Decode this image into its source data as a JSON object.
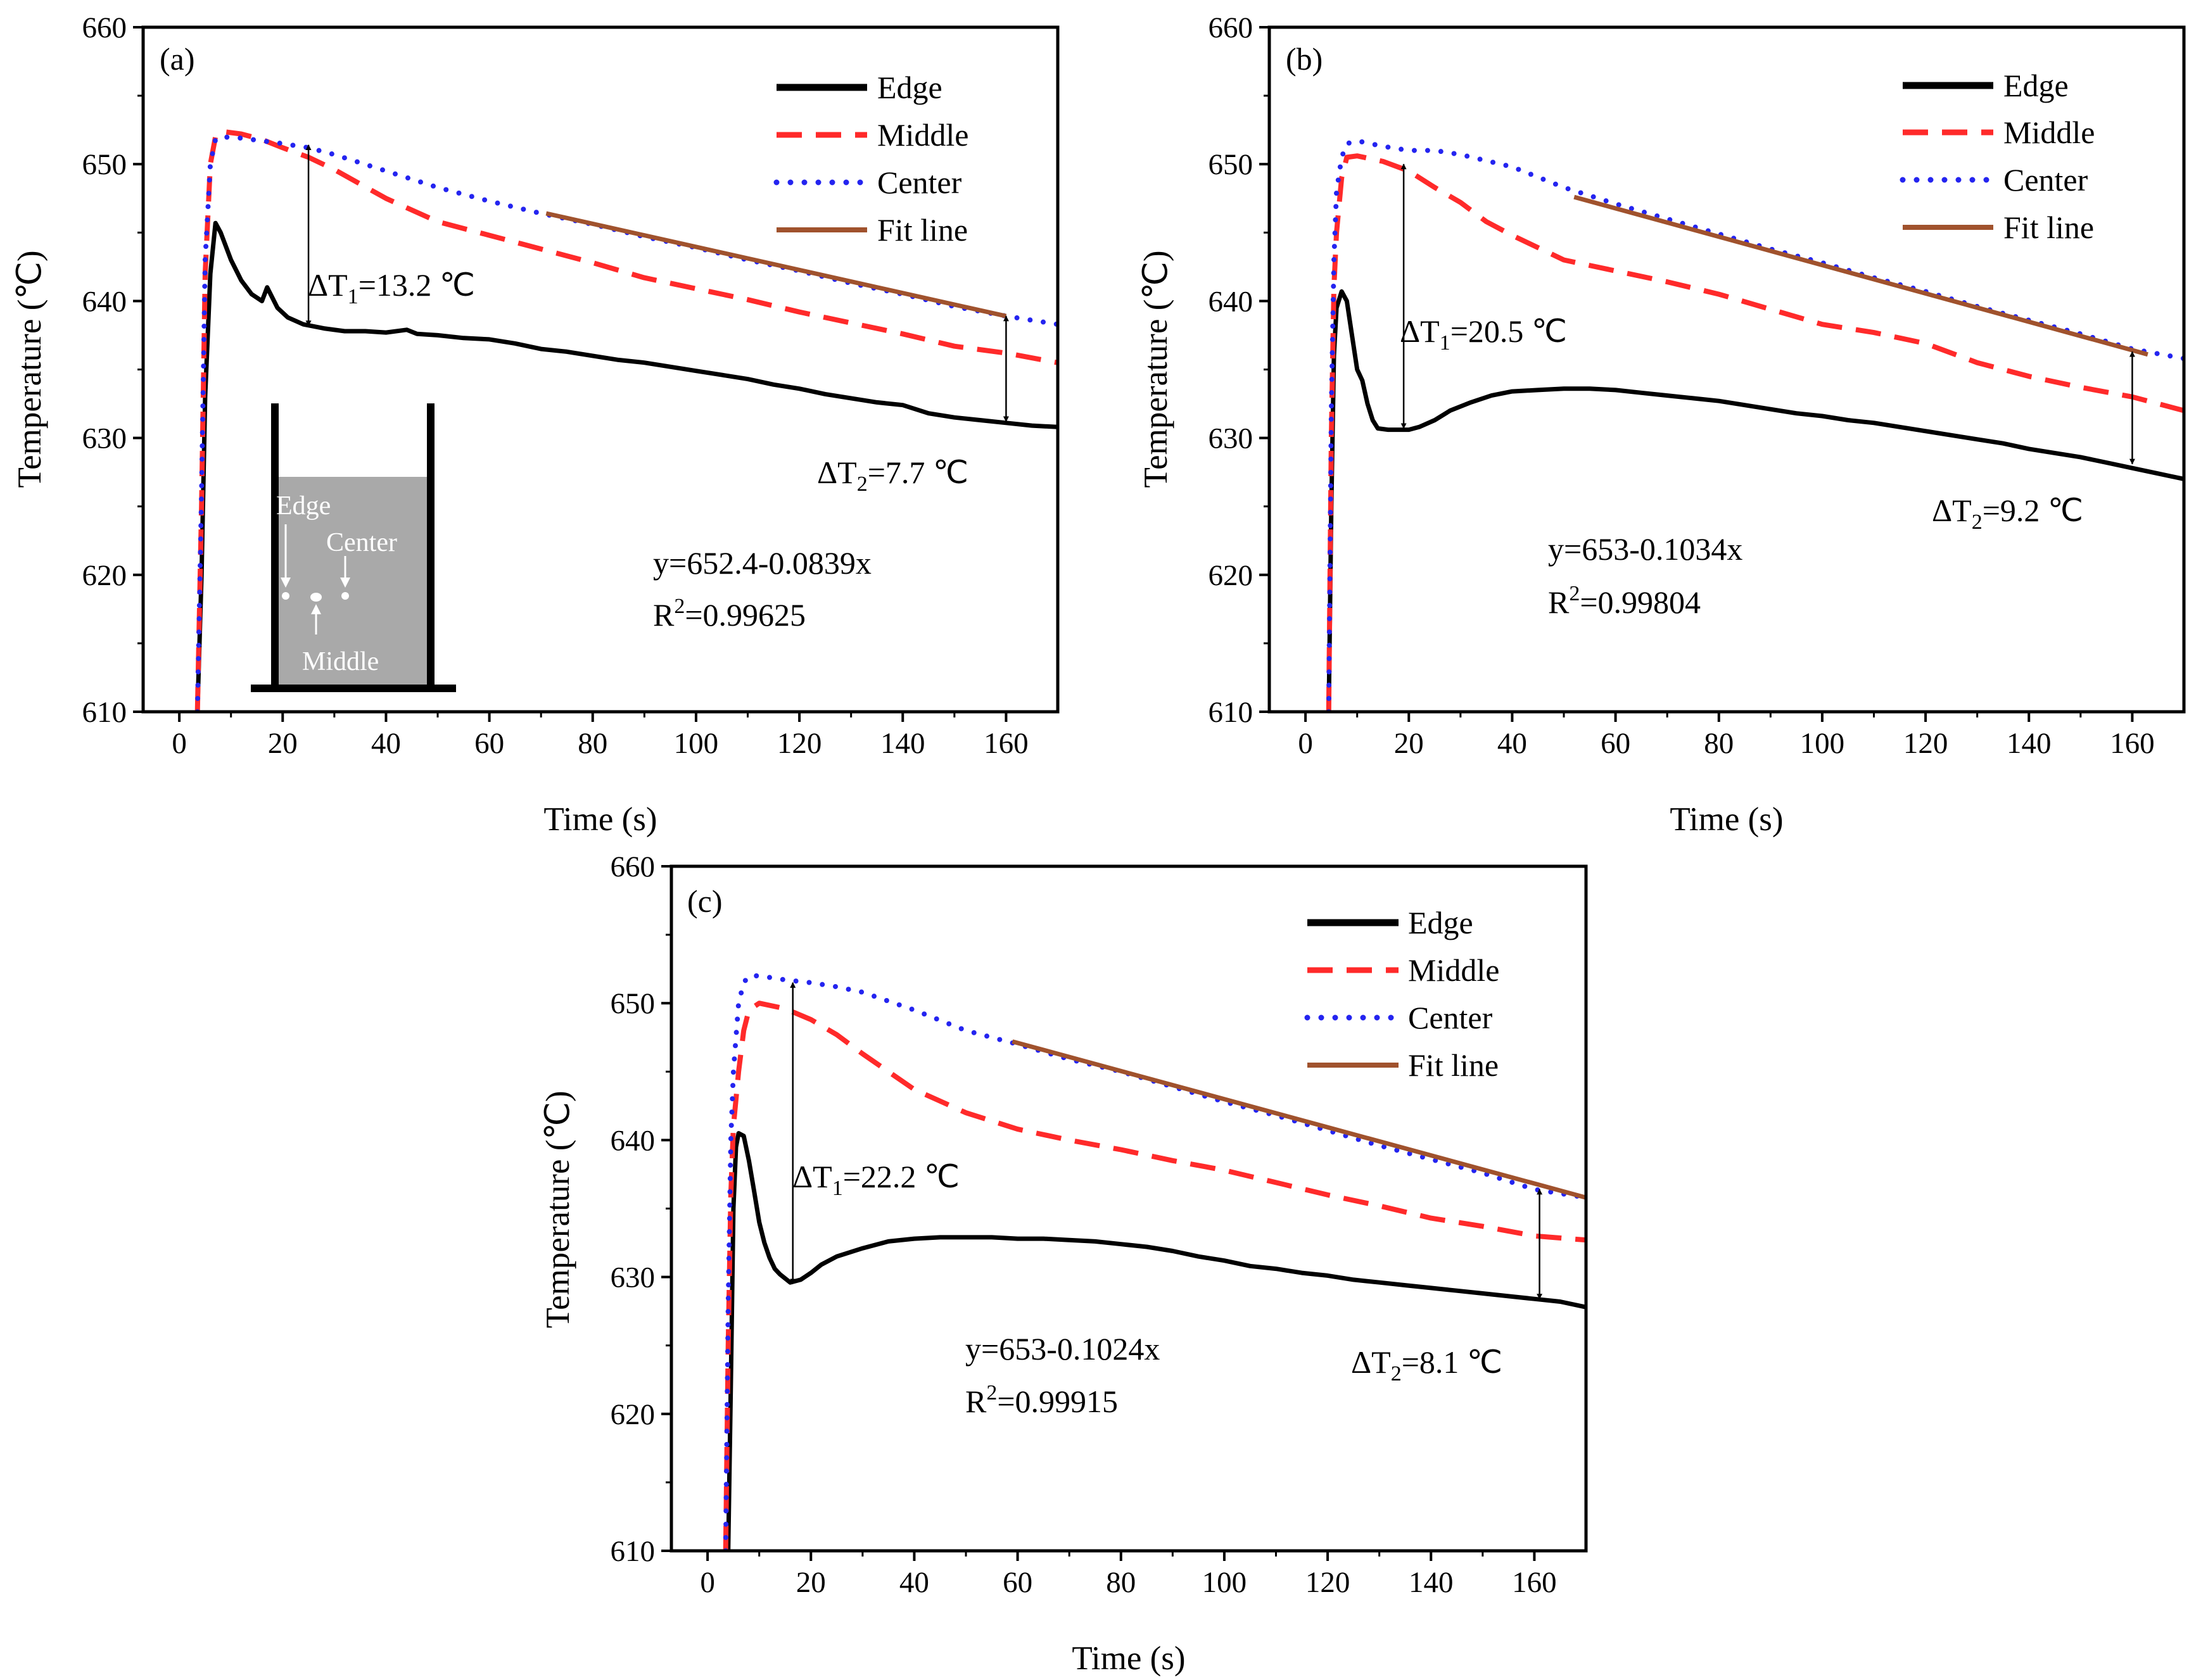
{
  "colors": {
    "edge": "#000000",
    "middle": "#ff2a2a",
    "center": "#2424f0",
    "fit": "#a0522d",
    "inset_fill": "#a9a9a9",
    "inset_dot": "#ffffff"
  },
  "chart_data": [
    {
      "type": "line",
      "panel_label": "(a)",
      "xlabel": "Time (s)",
      "ylabel": "Temperature (℃)",
      "xlim": [
        -7,
        170
      ],
      "ylim": [
        610,
        660
      ],
      "x_ticks": [
        "0",
        "20",
        "40",
        "60",
        "80",
        "100",
        "120",
        "140",
        "160"
      ],
      "y_ticks": [
        "610",
        "620",
        "630",
        "640",
        "650",
        "660"
      ],
      "legend": [
        "Edge",
        "Middle",
        "Center",
        "Fit line"
      ],
      "legend_position": "top-right",
      "series": [
        {
          "name": "Edge",
          "style": "solid",
          "x": [
            3.5,
            4.3,
            5.0,
            6.0,
            7.0,
            8.0,
            10,
            12,
            14,
            16,
            17,
            19,
            21,
            24,
            28,
            32,
            36,
            40,
            44,
            46,
            50,
            55,
            60,
            65,
            70,
            75,
            80,
            85,
            90,
            95,
            100,
            105,
            110,
            115,
            120,
            125,
            130,
            135,
            140,
            145,
            150,
            155,
            160,
            165,
            170
          ],
          "y": [
            610,
            620,
            633,
            642,
            645.7,
            645,
            643,
            641.5,
            640.5,
            640,
            641,
            639.5,
            638.8,
            638.3,
            638,
            637.8,
            637.8,
            637.7,
            637.9,
            637.6,
            637.5,
            637.3,
            637.2,
            636.9,
            636.5,
            636.3,
            636,
            635.7,
            635.5,
            635.2,
            634.9,
            634.6,
            634.3,
            633.9,
            633.6,
            633.2,
            632.9,
            632.6,
            632.4,
            631.8,
            631.5,
            631.3,
            631.1,
            630.9,
            630.8
          ]
        },
        {
          "name": "Middle",
          "style": "dash",
          "x": [
            3.5,
            4.3,
            5.0,
            6.0,
            7.0,
            8.0,
            12,
            16,
            20,
            25,
            30,
            40,
            50,
            60,
            70,
            80,
            90,
            100,
            110,
            120,
            130,
            140,
            150,
            160,
            170
          ],
          "y": [
            610,
            625,
            642,
            650,
            652,
            652.4,
            652.2,
            651.8,
            651.2,
            650.5,
            649.6,
            647.5,
            645.8,
            644.8,
            643.8,
            642.8,
            641.7,
            640.9,
            640.1,
            639.2,
            638.4,
            637.6,
            636.7,
            636.2,
            635.5
          ]
        },
        {
          "name": "Center",
          "style": "dot",
          "x": [
            3.5,
            4.3,
            5.0,
            6.0,
            7.0,
            8.0,
            12,
            16,
            20,
            25,
            30,
            40,
            50,
            60,
            70,
            80,
            90,
            100,
            110,
            120,
            130,
            140,
            150,
            160,
            170
          ],
          "y": [
            610,
            626,
            643,
            650,
            651.8,
            652,
            651.9,
            651.7,
            651.5,
            651.2,
            650.7,
            649.5,
            648.3,
            647.3,
            646.4,
            645.6,
            644.7,
            643.9,
            643,
            642.2,
            641.3,
            640.5,
            639.6,
            638.9,
            638.3
          ]
        },
        {
          "name": "Fit line",
          "style": "solid",
          "x": [
            71,
            160
          ],
          "y": [
            646.4,
            638.9
          ]
        }
      ],
      "annotations": [
        {
          "text": "ΔT",
          "sub": "1",
          "rest": "=13.2 ℃",
          "x": 25,
          "y_from": 651.4,
          "y_to": 638.2
        },
        {
          "text": "ΔT",
          "sub": "2",
          "rest": "=7.7 ℃",
          "x": 160,
          "y_from": 638.9,
          "y_to": 631.2
        }
      ],
      "fit_equation": "y=652.4-0.0839x",
      "r_squared": {
        "base": "R",
        "sup": "2",
        "rest": "=0.99625"
      },
      "inset_labels": {
        "edge": "Edge",
        "center": "Center",
        "middle": "Middle"
      }
    },
    {
      "type": "line",
      "panel_label": "(b)",
      "xlabel": "Time (s)",
      "ylabel": "Temperature (℃)",
      "xlim": [
        -7,
        170
      ],
      "ylim": [
        610,
        660
      ],
      "x_ticks": [
        "0",
        "20",
        "40",
        "60",
        "80",
        "100",
        "120",
        "140",
        "160"
      ],
      "y_ticks": [
        "610",
        "620",
        "630",
        "640",
        "650",
        "660"
      ],
      "legend": [
        "Edge",
        "Middle",
        "Center",
        "Fit line"
      ],
      "legend_position": "top-right",
      "series": [
        {
          "name": "Edge",
          "style": "solid",
          "x": [
            4.5,
            5.0,
            5.5,
            6.0,
            7.0,
            8.0,
            9,
            10,
            11,
            12,
            13,
            14,
            16,
            20,
            22,
            25,
            28,
            32,
            36,
            40,
            45,
            50,
            55,
            60,
            65,
            70,
            75,
            80,
            85,
            90,
            95,
            100,
            105,
            110,
            115,
            120,
            125,
            130,
            135,
            140,
            145,
            150,
            155,
            160,
            165,
            170
          ],
          "y": [
            610,
            625,
            636,
            639.5,
            640.7,
            640,
            637.5,
            635,
            634.2,
            632.5,
            631.3,
            630.7,
            630.6,
            630.6,
            630.8,
            631.3,
            632,
            632.6,
            633.1,
            633.4,
            633.5,
            633.6,
            633.6,
            633.5,
            633.3,
            633.1,
            632.9,
            632.7,
            632.4,
            632.1,
            631.8,
            631.6,
            631.3,
            631.1,
            630.8,
            630.5,
            630.2,
            629.9,
            629.6,
            629.2,
            628.9,
            628.6,
            628.2,
            627.8,
            627.4,
            627.0
          ]
        },
        {
          "name": "Middle",
          "style": "dash",
          "x": [
            4.5,
            5.0,
            5.5,
            6.0,
            7.0,
            8.0,
            10,
            15,
            20,
            25,
            30,
            35,
            40,
            50,
            60,
            70,
            80,
            90,
            100,
            110,
            120,
            130,
            140,
            150,
            160,
            170
          ],
          "y": [
            610,
            630,
            641,
            645,
            649,
            650.5,
            650.6,
            650.2,
            649.5,
            648.3,
            647.2,
            645.8,
            644.8,
            643,
            642.2,
            641.4,
            640.5,
            639.4,
            638.3,
            637.7,
            636.9,
            635.5,
            634.5,
            633.7,
            633.0,
            632.0
          ]
        },
        {
          "name": "Center",
          "style": "dot",
          "x": [
            4.5,
            5.0,
            5.5,
            6.0,
            7.0,
            8.0,
            10,
            15,
            20,
            25,
            30,
            40,
            50,
            60,
            70,
            80,
            90,
            100,
            110,
            120,
            130,
            140,
            150,
            160,
            170
          ],
          "y": [
            610,
            632,
            643,
            648,
            650.5,
            651.5,
            651.7,
            651.3,
            651,
            651,
            650.7,
            649.8,
            648.3,
            647.1,
            646,
            644.9,
            643.8,
            642.8,
            641.7,
            640.7,
            639.6,
            638.6,
            637.6,
            636.5,
            635.8
          ]
        },
        {
          "name": "Fit line",
          "style": "solid",
          "x": [
            52,
            163
          ],
          "y": [
            647.6,
            636.1
          ]
        }
      ],
      "annotations": [
        {
          "text": "ΔT",
          "sub": "1",
          "rest": "=20.5 ℃",
          "x": 19,
          "y_from": 650,
          "y_to": 630.7
        },
        {
          "text": "ΔT",
          "sub": "2",
          "rest": "=9.2 ℃",
          "x": 160,
          "y_from": 636.3,
          "y_to": 628.1
        }
      ],
      "fit_equation": "y=653-0.1034x",
      "r_squared": {
        "base": "R",
        "sup": "2",
        "rest": "=0.99804"
      }
    },
    {
      "type": "line",
      "panel_label": "(c)",
      "xlabel": "Time (s)",
      "ylabel": "Temperature (℃)",
      "xlim": [
        -7,
        170
      ],
      "ylim": [
        610,
        660
      ],
      "x_ticks": [
        "0",
        "20",
        "40",
        "60",
        "80",
        "100",
        "120",
        "140",
        "160"
      ],
      "y_ticks": [
        "610",
        "620",
        "630",
        "640",
        "650",
        "660"
      ],
      "legend": [
        "Edge",
        "Middle",
        "Center",
        "Fit line"
      ],
      "legend_position": "top-right",
      "series": [
        {
          "name": "Edge",
          "style": "solid",
          "x": [
            4.0,
            4.5,
            5.0,
            5.5,
            6.0,
            7.0,
            8.0,
            9,
            10,
            11,
            12,
            13,
            14,
            16,
            18,
            20,
            22,
            25,
            30,
            35,
            40,
            45,
            50,
            55,
            60,
            65,
            70,
            75,
            80,
            85,
            90,
            95,
            100,
            105,
            110,
            115,
            120,
            125,
            130,
            135,
            140,
            145,
            150,
            155,
            160,
            165,
            170
          ],
          "y": [
            610,
            622,
            635,
            639.5,
            640.5,
            640.3,
            638.5,
            636.3,
            634,
            632.5,
            631.4,
            630.6,
            630.2,
            629.6,
            629.8,
            630.3,
            630.9,
            631.5,
            632.1,
            632.6,
            632.8,
            632.9,
            632.9,
            632.9,
            632.8,
            632.8,
            632.7,
            632.6,
            632.4,
            632.2,
            631.9,
            631.5,
            631.2,
            630.8,
            630.6,
            630.3,
            630.1,
            629.8,
            629.6,
            629.4,
            629.2,
            629,
            628.8,
            628.6,
            628.4,
            628.2,
            627.8
          ]
        },
        {
          "name": "Middle",
          "style": "dash",
          "x": [
            3.5,
            4.0,
            4.5,
            5.0,
            6.0,
            7.0,
            8.0,
            10,
            15,
            20,
            25,
            30,
            40,
            50,
            60,
            70,
            80,
            90,
            100,
            110,
            120,
            130,
            140,
            150,
            160,
            170
          ],
          "y": [
            610,
            625,
            636,
            641,
            645,
            648,
            649.5,
            650,
            649.6,
            648.8,
            647.7,
            646.3,
            643.7,
            642,
            640.8,
            640,
            639.3,
            638.5,
            637.8,
            636.9,
            636.0,
            635.2,
            634.3,
            633.7,
            633.0,
            632.7
          ]
        },
        {
          "name": "Center",
          "style": "dot",
          "x": [
            3.5,
            4.0,
            4.5,
            5.0,
            6.0,
            7.0,
            8.0,
            10,
            15,
            20,
            25,
            30,
            40,
            50,
            60,
            70,
            80,
            90,
            100,
            110,
            120,
            130,
            140,
            150,
            160,
            170
          ],
          "y": [
            610,
            628,
            640,
            645,
            650,
            651.5,
            652,
            652,
            651.7,
            651.5,
            651.2,
            650.8,
            649.5,
            648,
            647,
            645.9,
            645,
            643.9,
            642.8,
            641.8,
            640.7,
            639.6,
            638.6,
            637.6,
            636.4,
            635.8
          ]
        },
        {
          "name": "Fit line",
          "style": "solid",
          "x": [
            59,
            170
          ],
          "y": [
            647.2,
            635.8
          ]
        }
      ],
      "annotations": [
        {
          "text": "ΔT",
          "sub": "1",
          "rest": "=22.2 ℃",
          "x": 16.5,
          "y_from": 651.5,
          "y_to": 629.5
        },
        {
          "text": "ΔT",
          "sub": "2",
          "rest": "=8.1 ℃",
          "x": 161,
          "y_from": 636.4,
          "y_to": 628.4
        }
      ],
      "fit_equation": "y=653-0.1024x",
      "r_squared": {
        "base": "R",
        "sup": "2",
        "rest": "=0.99915"
      }
    }
  ]
}
